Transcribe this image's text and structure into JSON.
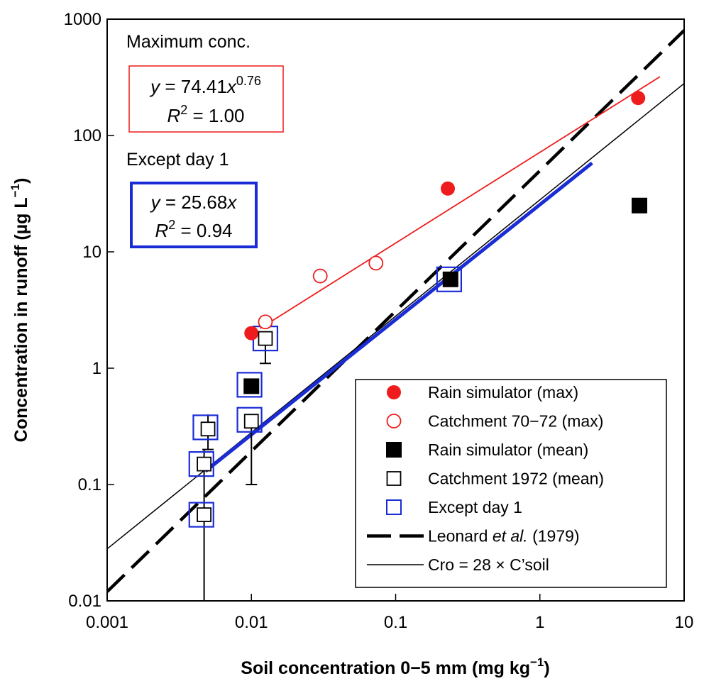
{
  "chart_data": {
    "type": "scatter",
    "x_scale": "log",
    "y_scale": "log",
    "xlim": [
      0.001,
      10
    ],
    "ylim": [
      0.01,
      1000
    ],
    "xlabel": "Soil concentration 0−5 mm (mg kg",
    "xlabel_sup": "−1",
    "xlabel_end": ")",
    "ylabel": "Concentration in runoff (µg L",
    "ylabel_sup": "−1",
    "ylabel_end": ")",
    "x_ticks": [
      {
        "value": 0.001,
        "label": "0.001"
      },
      {
        "value": 0.01,
        "label": "0.01"
      },
      {
        "value": 0.1,
        "label": "0.1"
      },
      {
        "value": 1,
        "label": "1"
      },
      {
        "value": 10,
        "label": "10"
      }
    ],
    "y_ticks": [
      {
        "value": 0.01,
        "label": "0.01"
      },
      {
        "value": 0.1,
        "label": "0.1"
      },
      {
        "value": 1,
        "label": "1"
      },
      {
        "value": 10,
        "label": "10"
      },
      {
        "value": 100,
        "label": "100"
      },
      {
        "value": 1000,
        "label": "1000"
      }
    ],
    "annotations": {
      "max_title": "Maximum conc.",
      "max_eq_prefix": "y",
      "max_eq_mid": " = 74.41",
      "max_eq_x": "x",
      "max_eq_exp": "0.76",
      "max_r2_label": "R",
      "max_r2_sup": "2",
      "max_r2_value": " = 1.00",
      "except_title": "Except day 1",
      "exc_eq_prefix": "y",
      "exc_eq_mid": " = 25.68",
      "exc_eq_x": "x",
      "exc_r2_label": "R",
      "exc_r2_sup": "2",
      "exc_r2_value": " = 0.94"
    },
    "series": [
      {
        "name": "Rain simulator (max)",
        "marker": "filled-circle",
        "color": "#ee1c1c",
        "points": [
          [
            0.01,
            2.0
          ],
          [
            0.23,
            35
          ],
          [
            4.8,
            210
          ]
        ]
      },
      {
        "name": "Catchment 70−72 (max)",
        "marker": "open-circle",
        "color": "#ee1c1c",
        "points": [
          [
            0.0125,
            2.5
          ],
          [
            0.03,
            6.2
          ],
          [
            0.073,
            8.0
          ]
        ]
      },
      {
        "name": "Rain simulator (mean)",
        "marker": "filled-square",
        "color": "#000000",
        "points": [
          [
            0.01,
            0.7
          ],
          [
            0.24,
            5.8
          ],
          [
            4.9,
            25
          ]
        ]
      },
      {
        "name": "Catchment 1972 (mean)",
        "marker": "open-square",
        "color": "#000000",
        "points": [
          [
            0.0047,
            0.055
          ],
          [
            0.0047,
            0.15
          ],
          [
            0.005,
            0.3
          ],
          [
            0.01,
            0.35
          ],
          [
            0.0125,
            1.8
          ]
        ],
        "error_bars": [
          [
            0.0047,
            0.01,
            0.2
          ],
          [
            0.005,
            0.2,
            0.4
          ],
          [
            0.01,
            0.1,
            0.35
          ],
          [
            0.0125,
            1.1,
            1.8
          ]
        ]
      },
      {
        "name": "Except day 1",
        "marker": "blue-square",
        "color": "#1a2cd6",
        "points": [
          [
            0.0045,
            0.055
          ],
          [
            0.0045,
            0.15
          ],
          [
            0.0048,
            0.31
          ],
          [
            0.0097,
            0.72
          ],
          [
            0.0097,
            0.36
          ],
          [
            0.0125,
            1.8
          ],
          [
            0.235,
            5.8
          ]
        ]
      },
      {
        "name": "Leonard et al. (1979)",
        "line": "dashed",
        "color": "#000000",
        "points": [
          [
            0.001,
            0.012
          ],
          [
            10,
            800
          ]
        ]
      },
      {
        "name": "Cro = 28 × C’soil",
        "line": "thin",
        "color": "#000000",
        "points": [
          [
            0.001,
            0.028
          ],
          [
            10,
            280
          ]
        ]
      },
      {
        "name": "Maximum conc. fit",
        "line": "red-fit",
        "color": "#ee1c1c",
        "points": [
          [
            0.0115,
            2.2
          ],
          [
            6.8,
            320
          ]
        ]
      },
      {
        "name": "Except day 1 fit",
        "line": "blue-fit",
        "color": "#1a2cd6",
        "points": [
          [
            0.0048,
            0.13
          ],
          [
            2.3,
            58
          ]
        ]
      }
    ],
    "legend": {
      "position": "bottom-right",
      "entries": [
        {
          "label": "Rain simulator (max)",
          "symbol": "filled-circle",
          "color": "#ee1c1c"
        },
        {
          "label": "Catchment 70−72 (max)",
          "symbol": "open-circle",
          "color": "#ee1c1c"
        },
        {
          "label": "Rain simulator (mean)",
          "symbol": "filled-square",
          "color": "#000000"
        },
        {
          "label": "Catchment 1972 (mean)",
          "symbol": "open-square",
          "color": "#000000"
        },
        {
          "label": "Except day 1",
          "symbol": "blue-square",
          "color": "#1a2cd6"
        },
        {
          "label": "Leonard ",
          "label_italic": "et al.",
          "label_end": " (1979)",
          "symbol": "dashed-line",
          "color": "#000000"
        },
        {
          "label": "Cro = 28 × C’soil",
          "symbol": "thin-line",
          "color": "#000000"
        }
      ]
    }
  }
}
